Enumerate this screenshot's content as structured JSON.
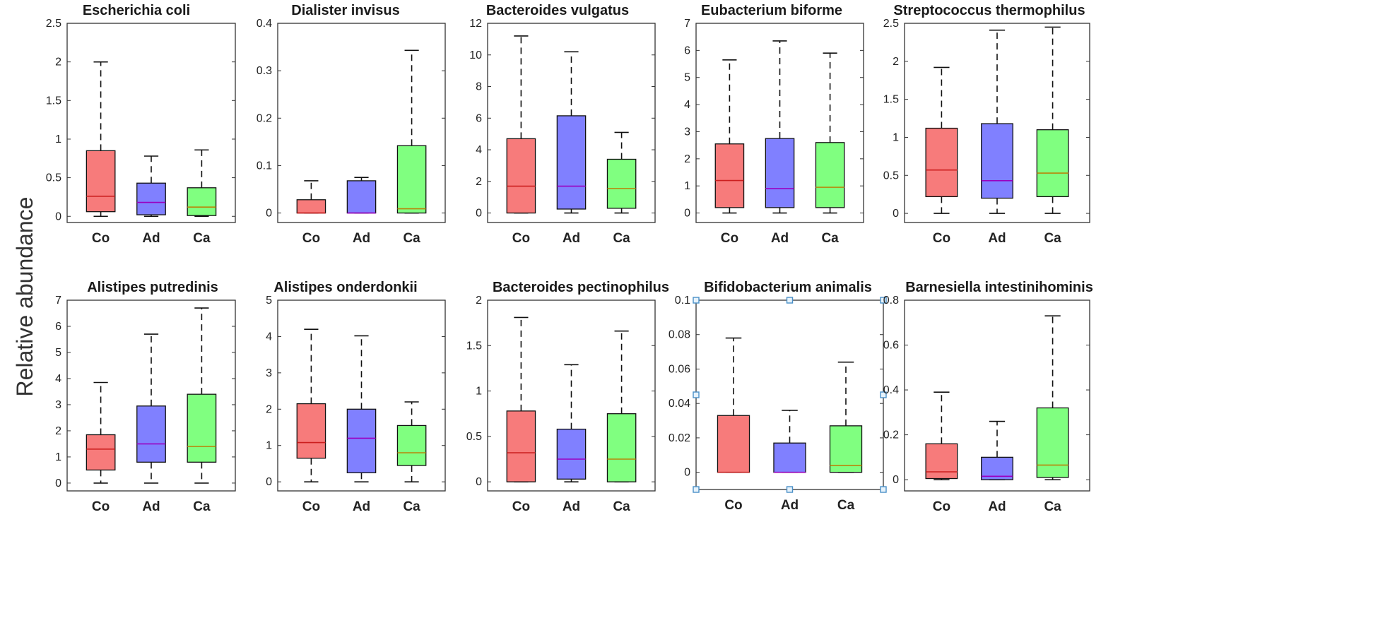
{
  "figure": {
    "ylabel": "Relative abundance",
    "group_colors": {
      "Co": "#f77b7b",
      "Ad": "#8080ff",
      "Ca": "#80ff80"
    },
    "median_colors": {
      "Co": "#cc1f1f",
      "Ad": "#9a00c0",
      "Ca": "#b8860b"
    },
    "selection_handle_color": "#4a90c8"
  },
  "chart_data": [
    {
      "type": "box",
      "title": "Escherichia coli",
      "categories": [
        "Co",
        "Ad",
        "Ca"
      ],
      "ylim": [
        -0.08,
        2.5
      ],
      "yticks": [
        0,
        0.5,
        1,
        1.5,
        2,
        2.5
      ],
      "ytick_labels": [
        "0",
        "0.5",
        "1",
        "1.5",
        "2",
        "2.5"
      ],
      "boxes": [
        {
          "whisker_low": 0.0,
          "q1": 0.06,
          "median": 0.26,
          "q3": 0.85,
          "whisker_high": 2.0
        },
        {
          "whisker_low": 0.0,
          "q1": 0.02,
          "median": 0.18,
          "q3": 0.43,
          "whisker_high": 0.78
        },
        {
          "whisker_low": 0.0,
          "q1": 0.01,
          "median": 0.12,
          "q3": 0.37,
          "whisker_high": 0.86
        }
      ]
    },
    {
      "type": "box",
      "title": "Dialister invisus",
      "categories": [
        "Co",
        "Ad",
        "Ca"
      ],
      "ylim": [
        -0.02,
        0.4
      ],
      "yticks": [
        0,
        0.1,
        0.2,
        0.3,
        0.4
      ],
      "ytick_labels": [
        "0",
        "0.1",
        "0.2",
        "0.3",
        "0.4"
      ],
      "boxes": [
        {
          "whisker_low": 0.0,
          "q1": 0.0,
          "median": 0.0,
          "q3": 0.028,
          "whisker_high": 0.068
        },
        {
          "whisker_low": 0.0,
          "q1": 0.0,
          "median": 0.0,
          "q3": 0.068,
          "whisker_high": 0.075
        },
        {
          "whisker_low": 0.0,
          "q1": 0.0,
          "median": 0.009,
          "q3": 0.142,
          "whisker_high": 0.343
        }
      ]
    },
    {
      "type": "box",
      "title": "Bacteroides vulgatus",
      "categories": [
        "Co",
        "Ad",
        "Ca"
      ],
      "ylim": [
        -0.6,
        12
      ],
      "yticks": [
        0,
        2,
        4,
        6,
        8,
        10,
        12
      ],
      "ytick_labels": [
        "0",
        "2",
        "4",
        "6",
        "8",
        "10",
        "12"
      ],
      "boxes": [
        {
          "whisker_low": 0.0,
          "q1": 0.0,
          "median": 1.7,
          "q3": 4.7,
          "whisker_high": 11.2
        },
        {
          "whisker_low": 0.0,
          "q1": 0.25,
          "median": 1.7,
          "q3": 6.15,
          "whisker_high": 10.2
        },
        {
          "whisker_low": 0.0,
          "q1": 0.3,
          "median": 1.55,
          "q3": 3.4,
          "whisker_high": 5.1
        }
      ]
    },
    {
      "type": "box",
      "title": "Eubacterium biforme",
      "categories": [
        "Co",
        "Ad",
        "Ca"
      ],
      "ylim": [
        -0.35,
        7
      ],
      "yticks": [
        0,
        1,
        2,
        3,
        4,
        5,
        6,
        7
      ],
      "ytick_labels": [
        "0",
        "1",
        "2",
        "3",
        "4",
        "5",
        "6",
        "7"
      ],
      "boxes": [
        {
          "whisker_low": 0.0,
          "q1": 0.2,
          "median": 1.2,
          "q3": 2.55,
          "whisker_high": 5.65
        },
        {
          "whisker_low": 0.0,
          "q1": 0.2,
          "median": 0.9,
          "q3": 2.75,
          "whisker_high": 6.35
        },
        {
          "whisker_low": 0.0,
          "q1": 0.2,
          "median": 0.95,
          "q3": 2.6,
          "whisker_high": 5.9
        }
      ]
    },
    {
      "type": "box",
      "title": "Streptococcus thermophilus",
      "categories": [
        "Co",
        "Ad",
        "Ca"
      ],
      "ylim": [
        -0.12,
        2.5
      ],
      "yticks": [
        0,
        0.5,
        1,
        1.5,
        2,
        2.5
      ],
      "ytick_labels": [
        "0",
        "0.5",
        "1",
        "1.5",
        "2",
        "2.5"
      ],
      "boxes": [
        {
          "whisker_low": 0.0,
          "q1": 0.22,
          "median": 0.57,
          "q3": 1.12,
          "whisker_high": 1.92
        },
        {
          "whisker_low": 0.0,
          "q1": 0.2,
          "median": 0.43,
          "q3": 1.18,
          "whisker_high": 2.41
        },
        {
          "whisker_low": 0.0,
          "q1": 0.22,
          "median": 0.53,
          "q3": 1.1,
          "whisker_high": 2.45
        }
      ]
    },
    {
      "type": "box",
      "title": "Alistipes putredinis",
      "categories": [
        "Co",
        "Ad",
        "Ca"
      ],
      "ylim": [
        -0.3,
        7
      ],
      "yticks": [
        0,
        1,
        2,
        3,
        4,
        5,
        6,
        7
      ],
      "ytick_labels": [
        "0",
        "1",
        "2",
        "3",
        "4",
        "5",
        "6",
        "7"
      ],
      "boxes": [
        {
          "whisker_low": 0.0,
          "q1": 0.5,
          "median": 1.3,
          "q3": 1.85,
          "whisker_high": 3.85
        },
        {
          "whisker_low": 0.0,
          "q1": 0.8,
          "median": 1.5,
          "q3": 2.95,
          "whisker_high": 5.7
        },
        {
          "whisker_low": 0.0,
          "q1": 0.8,
          "median": 1.4,
          "q3": 3.4,
          "whisker_high": 6.7
        }
      ]
    },
    {
      "type": "box",
      "title": "Alistipes onderdonkii",
      "categories": [
        "Co",
        "Ad",
        "Ca"
      ],
      "ylim": [
        -0.25,
        5
      ],
      "yticks": [
        0,
        1,
        2,
        3,
        4,
        5
      ],
      "ytick_labels": [
        "0",
        "1",
        "2",
        "3",
        "4",
        "5"
      ],
      "boxes": [
        {
          "whisker_low": 0.0,
          "q1": 0.65,
          "median": 1.08,
          "q3": 2.15,
          "whisker_high": 4.2
        },
        {
          "whisker_low": 0.0,
          "q1": 0.25,
          "median": 1.2,
          "q3": 2.0,
          "whisker_high": 4.02
        },
        {
          "whisker_low": 0.0,
          "q1": 0.45,
          "median": 0.8,
          "q3": 1.55,
          "whisker_high": 2.2
        }
      ]
    },
    {
      "type": "box",
      "title": "Bacteroides pectinophilus",
      "categories": [
        "Co",
        "Ad",
        "Ca"
      ],
      "ylim": [
        -0.1,
        2
      ],
      "yticks": [
        0,
        0.5,
        1,
        1.5,
        2
      ],
      "ytick_labels": [
        "0",
        "0.5",
        "1",
        "1.5",
        "2"
      ],
      "boxes": [
        {
          "whisker_low": 0.0,
          "q1": 0.0,
          "median": 0.32,
          "q3": 0.78,
          "whisker_high": 1.81
        },
        {
          "whisker_low": 0.0,
          "q1": 0.03,
          "median": 0.25,
          "q3": 0.58,
          "whisker_high": 1.29
        },
        {
          "whisker_low": 0.0,
          "q1": 0.0,
          "median": 0.25,
          "q3": 0.75,
          "whisker_high": 1.66
        }
      ]
    },
    {
      "type": "box",
      "title": "Bifidobacterium animalis",
      "categories": [
        "Co",
        "Ad",
        "Ca"
      ],
      "ylim": [
        -0.01,
        0.1
      ],
      "yticks": [
        0,
        0.02,
        0.04,
        0.06,
        0.08,
        0.1
      ],
      "ytick_labels": [
        "0",
        "0.02",
        "0.04",
        "0.06",
        "0.08",
        "0.1"
      ],
      "selected": true,
      "boxes": [
        {
          "whisker_low": 0.0,
          "q1": 0.0,
          "median": 0.0,
          "q3": 0.033,
          "whisker_high": 0.078
        },
        {
          "whisker_low": 0.0,
          "q1": 0.0,
          "median": 0.0,
          "q3": 0.017,
          "whisker_high": 0.036
        },
        {
          "whisker_low": 0.0,
          "q1": 0.0,
          "median": 0.004,
          "q3": 0.027,
          "whisker_high": 0.064
        }
      ]
    },
    {
      "type": "box",
      "title": "Barnesiella intestinihominis",
      "categories": [
        "Co",
        "Ad",
        "Ca"
      ],
      "ylim": [
        -0.05,
        0.8
      ],
      "yticks": [
        0,
        0.2,
        0.4,
        0.6,
        0.8
      ],
      "ytick_labels": [
        "0",
        "0.2",
        "0.4",
        "0.6",
        "0.8"
      ],
      "boxes": [
        {
          "whisker_low": 0.0,
          "q1": 0.005,
          "median": 0.035,
          "q3": 0.16,
          "whisker_high": 0.39
        },
        {
          "whisker_low": 0.0,
          "q1": 0.0,
          "median": 0.015,
          "q3": 0.1,
          "whisker_high": 0.26
        },
        {
          "whisker_low": 0.0,
          "q1": 0.01,
          "median": 0.065,
          "q3": 0.32,
          "whisker_high": 0.73
        }
      ]
    }
  ]
}
